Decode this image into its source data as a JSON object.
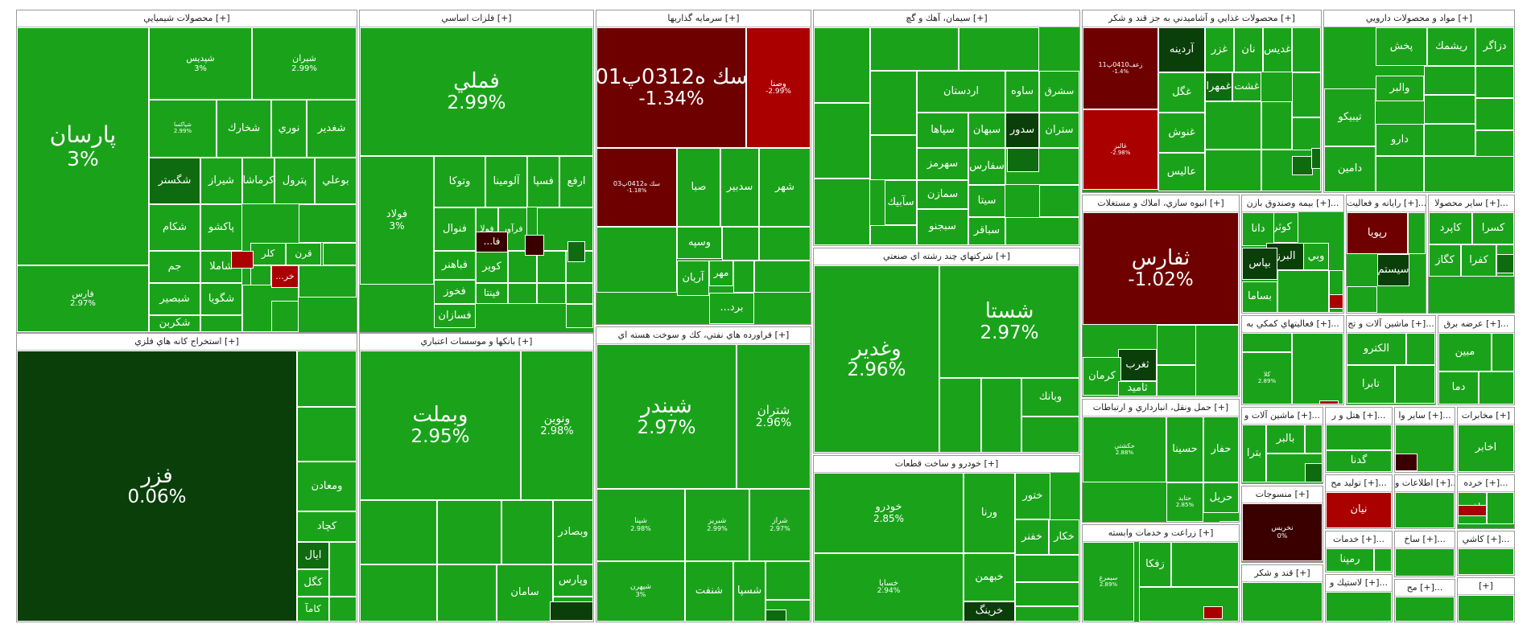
{
  "title": "Market Map",
  "colors": {
    "up": "#1aa31a",
    "up_dark": "#0f6b0f",
    "flat": "#0a3f0a",
    "down": "#aa0000",
    "down_dark": "#6e0000",
    "down_deep": "#3a0000",
    "border": "#ffffff",
    "header_bg": "#ffffff"
  },
  "chart_data": {
    "type": "treemap",
    "title": "",
    "sectors": [
      {
        "name": "محصولات شيميايي [+]",
        "cells": [
          {
            "name": "پارسان",
            "pct": "3%",
            "tone": "up"
          },
          {
            "name": "فارس",
            "pct": "2.97%",
            "tone": "up"
          },
          {
            "name": "شپديس",
            "pct": "3%",
            "tone": "up"
          },
          {
            "name": "شيران",
            "pct": "2.99%",
            "tone": "up"
          },
          {
            "name": "شپاکسا",
            "pct": "2.99%",
            "tone": "up"
          },
          {
            "name": "شخارك",
            "pct": "",
            "tone": "up"
          },
          {
            "name": "نوري",
            "pct": "",
            "tone": "up"
          },
          {
            "name": "شغدير",
            "pct": "",
            "tone": "up"
          },
          {
            "name": "شگستر",
            "pct": "",
            "tone": "up_dark"
          },
          {
            "name": "شيراز",
            "pct": "",
            "tone": "up"
          },
          {
            "name": "كرماشا",
            "pct": "",
            "tone": "up"
          },
          {
            "name": "پترول",
            "pct": "",
            "tone": "up"
          },
          {
            "name": "بوعلي",
            "pct": "",
            "tone": "up"
          },
          {
            "name": "شكام",
            "pct": "",
            "tone": "up"
          },
          {
            "name": "پاكشو",
            "pct": "",
            "tone": "up"
          },
          {
            "name": "جم",
            "pct": "",
            "tone": "up"
          },
          {
            "name": "شاملا",
            "pct": "",
            "tone": "up"
          },
          {
            "name": "شبصير",
            "pct": "",
            "tone": "up"
          },
          {
            "name": "شكربن",
            "pct": "",
            "tone": "up"
          },
          {
            "name": "شگويا",
            "pct": "",
            "tone": "up"
          },
          {
            "name": "كلر",
            "pct": "",
            "tone": "up"
          },
          {
            "name": "قرن",
            "pct": "",
            "tone": "up"
          },
          {
            "name": "...خر",
            "pct": "",
            "tone": "down"
          }
        ]
      },
      {
        "name": "استخراج كانه هاي فلزي [+]",
        "cells": [
          {
            "name": "فزر",
            "pct": "0.06%",
            "tone": "flat"
          },
          {
            "name": "كچاد",
            "pct": "",
            "tone": "up"
          },
          {
            "name": "ومعادن",
            "pct": "",
            "tone": "up"
          },
          {
            "name": "ايال",
            "pct": "",
            "tone": "up_dark"
          },
          {
            "name": "كگل",
            "pct": "",
            "tone": "up"
          },
          {
            "name": "كامآ",
            "pct": "",
            "tone": "up"
          }
        ]
      },
      {
        "name": "فلزات اساسي [+]",
        "cells": [
          {
            "name": "فملي",
            "pct": "2.99%",
            "tone": "up"
          },
          {
            "name": "فولاد",
            "pct": "3%",
            "tone": "up"
          },
          {
            "name": "وتوكا",
            "pct": "",
            "tone": "up"
          },
          {
            "name": "آلومينا",
            "pct": "",
            "tone": "up"
          },
          {
            "name": "فسپا",
            "pct": "",
            "tone": "up"
          },
          {
            "name": "ارفع",
            "pct": "",
            "tone": "up"
          },
          {
            "name": "فنوال",
            "pct": "",
            "tone": "up"
          },
          {
            "name": "فولا",
            "pct": "",
            "tone": "up"
          },
          {
            "name": "فرآور",
            "pct": "",
            "tone": "up"
          },
          {
            "name": "فباهنر",
            "pct": "",
            "tone": "up"
          },
          {
            "name": "فخوز",
            "pct": "",
            "tone": "up"
          },
          {
            "name": "كوير",
            "pct": "",
            "tone": "up"
          },
          {
            "name": "فسازان",
            "pct": "",
            "tone": "up"
          },
          {
            "name": "فپنتا",
            "pct": "",
            "tone": "up"
          },
          {
            "name": "...فا",
            "pct": "",
            "tone": "down_deep"
          }
        ]
      },
      {
        "name": "بانكها و موسسات اعتباري [+]",
        "cells": [
          {
            "name": "وبملت",
            "pct": "2.95%",
            "tone": "up"
          },
          {
            "name": "ونوين",
            "pct": "2.98%",
            "tone": "up"
          },
          {
            "name": "وبصادر",
            "pct": "",
            "tone": "up"
          },
          {
            "name": "سامان",
            "pct": "",
            "tone": "up"
          },
          {
            "name": "وپارس",
            "pct": "",
            "tone": "up"
          }
        ]
      },
      {
        "name": "سرمايه گذاريها [+]",
        "cells": [
          {
            "name": "سك ه0312پ01",
            "pct": "-1.34%",
            "tone": "down_dark"
          },
          {
            "name": "وصنا",
            "pct": "-2.99%",
            "tone": "down"
          },
          {
            "name": "سك ه0412پ03",
            "pct": "-1.18%",
            "tone": "down_dark"
          },
          {
            "name": "صبا",
            "pct": "",
            "tone": "up"
          },
          {
            "name": "سدبير",
            "pct": "",
            "tone": "up"
          },
          {
            "name": "شهر",
            "pct": "",
            "tone": "up"
          },
          {
            "name": "وسپه",
            "pct": "",
            "tone": "up"
          },
          {
            "name": "مهر",
            "pct": "",
            "tone": "up"
          },
          {
            "name": "آريان",
            "pct": "",
            "tone": "up"
          },
          {
            "name": "...برد",
            "pct": "",
            "tone": "up"
          }
        ]
      },
      {
        "name": "فراورده هاي نفتي، كك و سوخت هسته اي [+]",
        "cells": [
          {
            "name": "شبندر",
            "pct": "2.97%",
            "tone": "up"
          },
          {
            "name": "شتران",
            "pct": "2.96%",
            "tone": "up"
          },
          {
            "name": "شپنا",
            "pct": "2.98%",
            "tone": "up"
          },
          {
            "name": "شبريز",
            "pct": "2.99%",
            "tone": "up"
          },
          {
            "name": "شراز",
            "pct": "2.97%",
            "tone": "up"
          },
          {
            "name": "شپهرن",
            "pct": "3%",
            "tone": "up"
          },
          {
            "name": "شنفت",
            "pct": "",
            "tone": "up"
          },
          {
            "name": "شسپا",
            "pct": "",
            "tone": "up"
          }
        ]
      },
      {
        "name": "سيمان، آهك و گچ [+]",
        "cells": [
          {
            "name": "سشرق",
            "pct": "",
            "tone": "up"
          },
          {
            "name": "ساوه",
            "pct": "",
            "tone": "up"
          },
          {
            "name": "اردستان",
            "pct": "",
            "tone": "up"
          },
          {
            "name": "ستران",
            "pct": "",
            "tone": "up"
          },
          {
            "name": "سدور",
            "pct": "",
            "tone": "flat"
          },
          {
            "name": "سپاها",
            "pct": "",
            "tone": "up"
          },
          {
            "name": "سهرمز",
            "pct": "",
            "tone": "up"
          },
          {
            "name": "سمازن",
            "pct": "",
            "tone": "up"
          },
          {
            "name": "سيتا",
            "pct": "",
            "tone": "up"
          },
          {
            "name": "سفارس",
            "pct": "",
            "tone": "up"
          },
          {
            "name": "سبجنو",
            "pct": "",
            "tone": "up"
          },
          {
            "name": "سآبيك",
            "pct": "",
            "tone": "up"
          },
          {
            "name": "سباقر",
            "pct": "",
            "tone": "up"
          },
          {
            "name": "سبهان",
            "pct": "",
            "tone": "up"
          }
        ]
      },
      {
        "name": "شركتهاي چند رشته اي صنعتي [+]",
        "cells": [
          {
            "name": "وغدير",
            "pct": "2.96%",
            "tone": "up"
          },
          {
            "name": "شستا",
            "pct": "2.97%",
            "tone": "up"
          },
          {
            "name": "وبانك",
            "pct": "",
            "tone": "up"
          }
        ]
      },
      {
        "name": "خودرو و ساخت قطعات [+]",
        "cells": [
          {
            "name": "خودرو",
            "pct": "2.85%",
            "tone": "up"
          },
          {
            "name": "خساپا",
            "pct": "2.94%",
            "tone": "up"
          },
          {
            "name": "ورنا",
            "pct": "",
            "tone": "up"
          },
          {
            "name": "خبهمن",
            "pct": "",
            "tone": "up"
          },
          {
            "name": "خرينگ",
            "pct": "",
            "tone": "flat"
          },
          {
            "name": "ختور",
            "pct": "",
            "tone": "up"
          },
          {
            "name": "خفنر",
            "pct": "",
            "tone": "up"
          },
          {
            "name": "خكار",
            "pct": "",
            "tone": "up"
          }
        ]
      },
      {
        "name": "محصولات غذايي و آشاميدني به جز قند و شكر [+]",
        "cells": [
          {
            "name": "زعف0410پ11",
            "pct": "-1.4%",
            "tone": "down_dark"
          },
          {
            "name": "غالبر",
            "pct": "-2.98%",
            "tone": "down"
          },
          {
            "name": "آردينه",
            "pct": "",
            "tone": "flat"
          },
          {
            "name": "غزر",
            "pct": "",
            "tone": "up"
          },
          {
            "name": "نان",
            "pct": "",
            "tone": "up"
          },
          {
            "name": "غديس",
            "pct": "",
            "tone": "up"
          },
          {
            "name": "غگل",
            "pct": "",
            "tone": "up"
          },
          {
            "name": "غمهرا",
            "pct": "",
            "tone": "up_dark"
          },
          {
            "name": "غشت",
            "pct": "",
            "tone": "up"
          },
          {
            "name": "غنوش",
            "pct": "",
            "tone": "up"
          },
          {
            "name": "عاليس",
            "pct": "",
            "tone": "up"
          }
        ]
      },
      {
        "name": "مواد و محصولات دارويي [+]",
        "cells": [
          {
            "name": "دزاگر",
            "pct": "",
            "tone": "up"
          },
          {
            "name": "ريشمك",
            "pct": "",
            "tone": "up"
          },
          {
            "name": "پخش",
            "pct": "",
            "tone": "up"
          },
          {
            "name": "تيبيكو",
            "pct": "",
            "tone": "up"
          },
          {
            "name": "والبر",
            "pct": "",
            "tone": "up"
          },
          {
            "name": "دارو",
            "pct": "",
            "tone": "up"
          },
          {
            "name": "دامين",
            "pct": "",
            "tone": "up"
          }
        ]
      },
      {
        "name": "انبوه سازي، املاك و مستغلات [+]",
        "cells": [
          {
            "name": "ثفارس",
            "pct": "-1.02%",
            "tone": "down_dark"
          },
          {
            "name": "ثغرب",
            "pct": "",
            "tone": "flat"
          },
          {
            "name": "كرمان",
            "pct": "",
            "tone": "up"
          },
          {
            "name": "ثاميد",
            "pct": "",
            "tone": "up"
          }
        ]
      },
      {
        "name": "بيمه وصندوق بازن [+]...",
        "cells": [
          {
            "name": "كوثر",
            "pct": "",
            "tone": "up"
          },
          {
            "name": "دانا",
            "pct": "",
            "tone": "up"
          },
          {
            "name": "البرز",
            "pct": "",
            "tone": "flat"
          },
          {
            "name": "وبي",
            "pct": "",
            "tone": "up"
          },
          {
            "name": "بپاس",
            "pct": "",
            "tone": "flat"
          },
          {
            "name": "بساما",
            "pct": "",
            "tone": "up"
          }
        ]
      },
      {
        "name": "رايانه و فعاليت [+]...",
        "cells": [
          {
            "name": "رپويا",
            "pct": "",
            "tone": "down_dark"
          },
          {
            "name": "سيستم",
            "pct": "",
            "tone": "flat"
          }
        ]
      },
      {
        "name": "ساير محصولا [+]...",
        "cells": [
          {
            "name": "كسرا",
            "pct": "",
            "tone": "up"
          },
          {
            "name": "كاپرد",
            "pct": "",
            "tone": "up"
          },
          {
            "name": "كفرا",
            "pct": "",
            "tone": "up"
          },
          {
            "name": "كگاز",
            "pct": "",
            "tone": "up"
          }
        ]
      },
      {
        "name": "فعاليتهاي كمكي به [+]...",
        "cells": [
          {
            "name": "كلا",
            "pct": "2.89%",
            "tone": "up"
          }
        ]
      },
      {
        "name": "ماشين آلات و تج [+]...",
        "cells": [
          {
            "name": "الكترو",
            "pct": "",
            "tone": "up"
          },
          {
            "name": "تابرا",
            "pct": "",
            "tone": "up"
          }
        ]
      },
      {
        "name": "عرضه برق [+]...",
        "cells": [
          {
            "name": "مبين",
            "pct": "",
            "tone": "up"
          },
          {
            "name": "دما",
            "pct": "",
            "tone": "up"
          }
        ]
      },
      {
        "name": "حمل ونقل، انبارداري و ارتباطات [+]",
        "cells": [
          {
            "name": "حكشتي",
            "pct": "2.88%",
            "tone": "up"
          },
          {
            "name": "حسينا",
            "pct": "",
            "tone": "up"
          },
          {
            "name": "حفار",
            "pct": "",
            "tone": "up"
          },
          {
            "name": "حريل",
            "pct": "",
            "tone": "up"
          },
          {
            "name": "حتايد",
            "pct": "2.85%",
            "tone": "up"
          }
        ]
      },
      {
        "name": "زراعت و خدمات وابسته [+]",
        "cells": [
          {
            "name": "سيمرغ",
            "pct": "2.89%",
            "tone": "up"
          },
          {
            "name": "زفكا",
            "pct": "",
            "tone": "up"
          }
        ]
      },
      {
        "name": "ماشين آلات و [+]...",
        "cells": [
          {
            "name": "بالبر",
            "pct": "",
            "tone": "up"
          },
          {
            "name": "بترا",
            "pct": "",
            "tone": "up"
          }
        ]
      },
      {
        "name": "منسوجات [+]",
        "cells": [
          {
            "name": "نخريس",
            "pct": "0%",
            "tone": "down_deep"
          }
        ]
      },
      {
        "name": "قند و شكر [+]",
        "cells": []
      },
      {
        "name": "هتل و ر [+]...",
        "cells": [
          {
            "name": "گدنا",
            "pct": "",
            "tone": "up"
          }
        ]
      },
      {
        "name": "ساير وا [+]...",
        "cells": []
      },
      {
        "name": "مخابرات [+]",
        "cells": [
          {
            "name": "اخابر",
            "pct": "",
            "tone": "up"
          }
        ]
      },
      {
        "name": "توليد مح [+]...",
        "cells": [
          {
            "name": "نيان",
            "pct": "",
            "tone": "down"
          }
        ]
      },
      {
        "name": "اطلاعات و [+]...",
        "cells": []
      },
      {
        "name": "خرده [+]...",
        "cells": [
          {
            "name": "افق",
            "pct": "",
            "tone": "up"
          }
        ]
      },
      {
        "name": "خدمات [+]...",
        "cells": [
          {
            "name": "رمپنا",
            "pct": "",
            "tone": "up"
          }
        ]
      },
      {
        "name": "لاستيك و [+]...",
        "cells": []
      },
      {
        "name": "ساخ [+]...",
        "cells": []
      },
      {
        "name": "مح [+]...",
        "cells": []
      },
      {
        "name": "كاشي [+]...",
        "cells": []
      },
      {
        "name": "[+]",
        "cells": []
      },
      {
        "name": "س [+]...",
        "cells": []
      }
    ]
  }
}
